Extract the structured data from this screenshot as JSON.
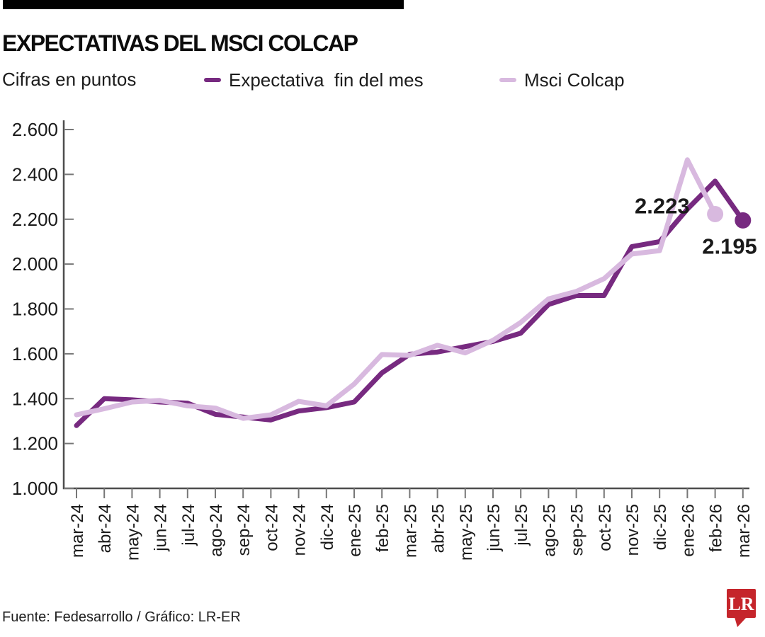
{
  "header": {
    "title": "EXPECTATIVAS DEL MSCI COLCAP",
    "subtitle": "Cifras en puntos"
  },
  "legend": [
    {
      "label": "Expectativa  fin del mes",
      "color": "#772a80"
    },
    {
      "label": "Msci Colcap",
      "color": "#d8b9df"
    }
  ],
  "footer": {
    "source": "Fuente: Fedesarrollo / Gráfico: LR-ER",
    "logo_text": "LR",
    "logo_color": "#c5252b"
  },
  "chart_data": {
    "type": "line",
    "title": "EXPECTATIVAS DEL MSCI COLCAP",
    "units_label": "Cifras en puntos",
    "grid": false,
    "legend_position": "top",
    "ylim": [
      1000,
      2600
    ],
    "y_ticks": [
      {
        "value": 1000,
        "label": "1.000"
      },
      {
        "value": 1200,
        "label": "1.200"
      },
      {
        "value": 1400,
        "label": "1.400"
      },
      {
        "value": 1600,
        "label": "1.600"
      },
      {
        "value": 1800,
        "label": "1.800"
      },
      {
        "value": 2000,
        "label": "2.000"
      },
      {
        "value": 2200,
        "label": "2.200"
      },
      {
        "value": 2400,
        "label": "2.400"
      },
      {
        "value": 2600,
        "label": "2.600"
      }
    ],
    "x": [
      "mar-24",
      "abr-24",
      "may-24",
      "jun-24",
      "jul-24",
      "ago-24",
      "sep-24",
      "oct-24",
      "nov-24",
      "dic-24",
      "ene-25",
      "feb-25",
      "mar-25",
      "abr-25",
      "may-25",
      "jun-25",
      "jul-25",
      "ago-25",
      "sep-25",
      "oct-25",
      "nov-25",
      "dic-25",
      "ene-26",
      "feb-26",
      "mar-26"
    ],
    "series": [
      {
        "name": "Expectativa  fin del mes",
        "color": "#772a80",
        "end_label": "2.195",
        "values": [
          1280,
          1400,
          1395,
          1385,
          1380,
          1330,
          1318,
          1305,
          1345,
          1360,
          1385,
          1515,
          1598,
          1608,
          1632,
          1655,
          1692,
          1820,
          1860,
          1860,
          2078,
          2100,
          2245,
          2370,
          2195
        ]
      },
      {
        "name": "Msci Colcap",
        "color": "#d8b9df",
        "end_label": "2.223",
        "values": [
          1328,
          1355,
          1385,
          1392,
          1368,
          1358,
          1312,
          1328,
          1388,
          1368,
          1465,
          1597,
          1593,
          1638,
          1604,
          1660,
          1740,
          1845,
          1878,
          1935,
          2045,
          2060,
          2465,
          2223,
          null
        ]
      }
    ]
  }
}
